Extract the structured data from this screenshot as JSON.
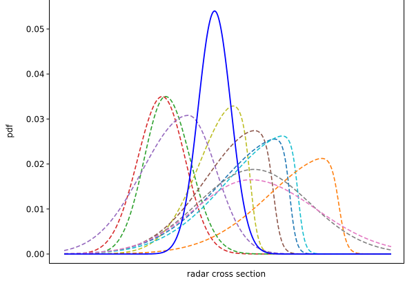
{
  "chart_data": {
    "type": "line",
    "title": "",
    "xlabel": "radar cross section",
    "ylabel": "pdf",
    "xlim": [
      0,
      1
    ],
    "ylim": [
      -0.0035,
      0.058
    ],
    "yticks": [
      {
        "value": 0.0,
        "label": "0.00"
      },
      {
        "value": 0.01,
        "label": "0.01"
      },
      {
        "value": 0.02,
        "label": "0.02"
      },
      {
        "value": 0.03,
        "label": "0.03"
      },
      {
        "value": 0.04,
        "label": "0.04"
      },
      {
        "value": 0.05,
        "label": "0.05"
      }
    ],
    "show_x_ticks": false,
    "grid": false,
    "legend": "none",
    "series": [
      {
        "color": "#0000ff",
        "style": "solid",
        "width": 1.8,
        "shape": "gauss",
        "params": {
          "mu": 0.46,
          "sigmaLeft": 0.05,
          "sigmaRight": 0.05,
          "peak": 0.054,
          "cut": null,
          "cutWidth": null
        }
      },
      {
        "color": "#d62728",
        "style": "dashed",
        "width": 1.6,
        "shape": "gauss",
        "params": {
          "mu": 0.3,
          "sigmaLeft": 0.075,
          "sigmaRight": 0.07,
          "peak": 0.035,
          "cut": null,
          "cutWidth": null
        }
      },
      {
        "color": "#2ca02c",
        "style": "dashed",
        "width": 1.6,
        "shape": "gauss",
        "params": {
          "mu": 0.31,
          "sigmaLeft": 0.065,
          "sigmaRight": 0.075,
          "peak": 0.035,
          "cut": null,
          "cutWidth": null
        }
      },
      {
        "color": "#9467bd",
        "style": "dashed",
        "width": 1.6,
        "shape": "gauss",
        "params": {
          "mu": 0.38,
          "sigmaLeft": 0.14,
          "sigmaRight": 0.085,
          "peak": 0.0308,
          "cut": null,
          "cutWidth": null
        }
      },
      {
        "color": "#bcbd22",
        "style": "dashed",
        "width": 1.6,
        "shape": "truncated",
        "params": {
          "mu": 0.53,
          "sigmaLeft": 0.115,
          "sigmaRight": 0.12,
          "peak": 0.0335,
          "cut": 0.57,
          "cutWidth": 0.012
        }
      },
      {
        "color": "#8c564b",
        "style": "dashed",
        "width": 1.6,
        "shape": "truncated",
        "params": {
          "mu": 0.6,
          "sigmaLeft": 0.165,
          "sigmaRight": 0.2,
          "peak": 0.0278,
          "cut": 0.64,
          "cutWidth": 0.012
        }
      },
      {
        "color": "#1f77b4",
        "style": "dashed",
        "width": 1.6,
        "shape": "truncated",
        "params": {
          "mu": 0.68,
          "sigmaLeft": 0.2,
          "sigmaRight": 0.2,
          "peak": 0.0262,
          "cut": 0.69,
          "cutWidth": 0.01
        }
      },
      {
        "color": "#17becf",
        "style": "dashed",
        "width": 1.6,
        "shape": "truncated",
        "params": {
          "mu": 0.7,
          "sigmaLeft": 0.2,
          "sigmaRight": 0.2,
          "peak": 0.0268,
          "cut": 0.715,
          "cutWidth": 0.01
        }
      },
      {
        "color": "#ff7f0e",
        "style": "dashed",
        "width": 1.6,
        "shape": "truncated",
        "params": {
          "mu": 0.83,
          "sigmaLeft": 0.2,
          "sigmaRight": 0.2,
          "peak": 0.022,
          "cut": 0.84,
          "cutWidth": 0.012
        }
      },
      {
        "color": "#7f7f7f",
        "style": "dashed",
        "width": 1.6,
        "shape": "gauss",
        "params": {
          "mu": 0.58,
          "sigmaLeft": 0.17,
          "sigmaRight": 0.17,
          "peak": 0.0188,
          "cut": null,
          "cutWidth": null
        }
      },
      {
        "color": "#e377c2",
        "style": "dashed",
        "width": 1.6,
        "shape": "gauss",
        "params": {
          "mu": 0.57,
          "sigmaLeft": 0.17,
          "sigmaRight": 0.2,
          "peak": 0.0165,
          "cut": null,
          "cutWidth": null
        }
      }
    ]
  }
}
